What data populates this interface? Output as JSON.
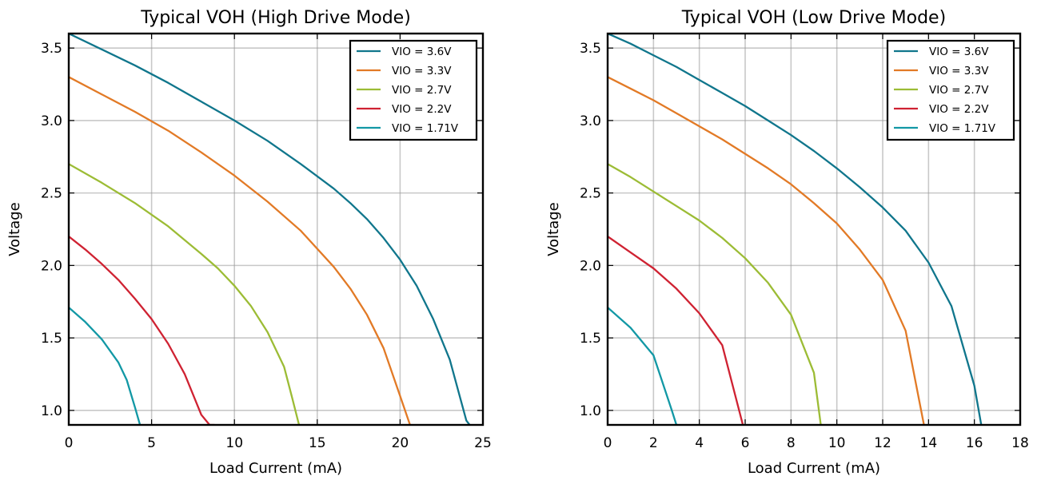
{
  "chart_data": [
    {
      "type": "line",
      "title": "Typical VOH (High Drive Mode)",
      "xlabel": "Load Current (mA)",
      "ylabel": "Voltage",
      "xlim": [
        0,
        25
      ],
      "ylim": [
        0.9,
        3.6
      ],
      "xticks": [
        0,
        5,
        10,
        15,
        20,
        25
      ],
      "xtick_labels": [
        "0",
        "5",
        "10",
        "15",
        "20",
        "25"
      ],
      "yticks": [
        1.0,
        1.5,
        2.0,
        2.5,
        3.0,
        3.5
      ],
      "ytick_labels": [
        "1.0",
        "1.5",
        "2.0",
        "2.5",
        "3.0",
        "3.5"
      ],
      "grid": true,
      "legend_position": "top-right",
      "series": [
        {
          "name": "VIO = 3.6V",
          "color": "#10768c",
          "x": [
            0,
            2,
            4,
            6,
            8,
            10,
            12,
            14,
            16,
            17,
            18,
            19,
            20,
            21,
            22,
            23,
            24,
            24.2
          ],
          "y": [
            3.6,
            3.49,
            3.38,
            3.26,
            3.13,
            3.0,
            2.86,
            2.7,
            2.53,
            2.43,
            2.32,
            2.19,
            2.04,
            1.86,
            1.63,
            1.35,
            0.93,
            0.9
          ]
        },
        {
          "name": "VIO = 3.3V",
          "color": "#e27a26",
          "x": [
            0,
            2,
            4,
            6,
            8,
            10,
            12,
            14,
            16,
            17,
            18,
            19,
            20,
            20.6
          ],
          "y": [
            3.3,
            3.18,
            3.06,
            2.93,
            2.78,
            2.62,
            2.44,
            2.24,
            1.99,
            1.84,
            1.66,
            1.43,
            1.1,
            0.9
          ]
        },
        {
          "name": "VIO = 2.7V",
          "color": "#9cbc35",
          "x": [
            0,
            2,
            4,
            6,
            8,
            9,
            10,
            11,
            12,
            13,
            13.5,
            13.9
          ],
          "y": [
            2.7,
            2.57,
            2.43,
            2.27,
            2.08,
            1.98,
            1.86,
            1.72,
            1.54,
            1.3,
            1.08,
            0.9
          ]
        },
        {
          "name": "VIO = 2.2V",
          "color": "#cf2232",
          "x": [
            0,
            1,
            2,
            3,
            4,
            5,
            6,
            7,
            8,
            8.5,
            8.8
          ],
          "y": [
            2.2,
            2.11,
            2.01,
            1.9,
            1.77,
            1.63,
            1.46,
            1.25,
            0.97,
            0.9,
            0.9
          ]
        },
        {
          "name": "VIO = 1.71V",
          "color": "#1298a5",
          "x": [
            0,
            1,
            2,
            3,
            3.5,
            4,
            4.3
          ],
          "y": [
            1.71,
            1.61,
            1.49,
            1.33,
            1.21,
            1.02,
            0.9
          ]
        }
      ]
    },
    {
      "type": "line",
      "title": "Typical VOH (Low Drive Mode)",
      "xlabel": "Load Current (mA)",
      "ylabel": "Voltage",
      "xlim": [
        0,
        18
      ],
      "ylim": [
        0.9,
        3.6
      ],
      "xticks": [
        0,
        2,
        4,
        6,
        8,
        10,
        12,
        14,
        16,
        18
      ],
      "xtick_labels": [
        "0",
        "2",
        "4",
        "6",
        "8",
        "10",
        "12",
        "14",
        "16",
        "18"
      ],
      "yticks": [
        1.0,
        1.5,
        2.0,
        2.5,
        3.0,
        3.5
      ],
      "ytick_labels": [
        "1.0",
        "1.5",
        "2.0",
        "2.5",
        "3.0",
        "3.5"
      ],
      "grid": true,
      "legend_position": "top-right",
      "series": [
        {
          "name": "VIO = 3.6V",
          "color": "#10768c",
          "x": [
            0,
            1,
            2,
            3,
            4,
            5,
            6,
            7,
            8,
            9,
            10,
            11,
            12,
            13,
            14,
            15,
            16,
            16.3
          ],
          "y": [
            3.6,
            3.53,
            3.45,
            3.37,
            3.28,
            3.19,
            3.1,
            3.0,
            2.9,
            2.79,
            2.67,
            2.54,
            2.4,
            2.24,
            2.02,
            1.72,
            1.17,
            0.9
          ]
        },
        {
          "name": "VIO = 3.3V",
          "color": "#e27a26",
          "x": [
            0,
            1,
            2,
            3,
            4,
            5,
            6,
            7,
            8,
            9,
            10,
            11,
            12,
            13,
            13.8
          ],
          "y": [
            3.3,
            3.22,
            3.14,
            3.05,
            2.96,
            2.87,
            2.77,
            2.67,
            2.56,
            2.43,
            2.29,
            2.11,
            1.9,
            1.55,
            0.9
          ]
        },
        {
          "name": "VIO = 2.7V",
          "color": "#9cbc35",
          "x": [
            0,
            1,
            2,
            3,
            4,
            5,
            6,
            7,
            8,
            9,
            9.3
          ],
          "y": [
            2.7,
            2.61,
            2.51,
            2.41,
            2.31,
            2.19,
            2.05,
            1.88,
            1.66,
            1.26,
            0.9
          ]
        },
        {
          "name": "VIO = 2.2V",
          "color": "#cf2232",
          "x": [
            0,
            1,
            2,
            3,
            4,
            5,
            5.9
          ],
          "y": [
            2.2,
            2.09,
            1.98,
            1.84,
            1.67,
            1.45,
            0.9
          ]
        },
        {
          "name": "VIO = 1.71V",
          "color": "#1298a5",
          "x": [
            0,
            1,
            2,
            2.8,
            3.0
          ],
          "y": [
            1.71,
            1.57,
            1.38,
            1.0,
            0.9
          ]
        }
      ]
    }
  ]
}
